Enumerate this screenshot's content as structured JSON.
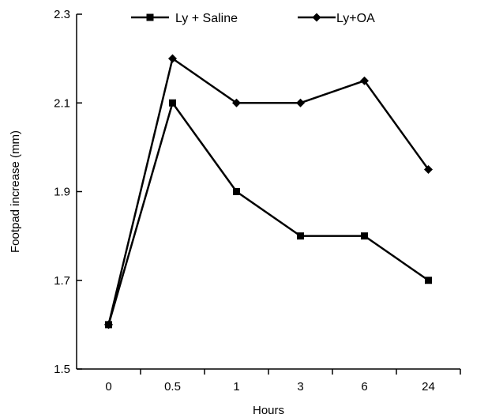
{
  "chart_data": {
    "type": "line",
    "title": "",
    "xlabel": "Hours",
    "ylabel": "Footpad increase (mm)",
    "categories": [
      "0",
      "0.5",
      "1",
      "3",
      "6",
      "24"
    ],
    "ylim": [
      1.5,
      2.3
    ],
    "yticks": [
      "1.5",
      "1.7",
      "1.9",
      "2.1",
      "2.3"
    ],
    "grid": false,
    "legend_position": "top",
    "series": [
      {
        "name": "Ly + Saline",
        "marker": "square",
        "color": "#000000",
        "values": [
          1.6,
          2.1,
          1.9,
          1.8,
          1.8,
          1.7
        ]
      },
      {
        "name": "Ly+OA",
        "marker": "diamond",
        "color": "#000000",
        "values": [
          1.6,
          2.2,
          2.1,
          2.1,
          2.15,
          1.95
        ]
      }
    ]
  }
}
